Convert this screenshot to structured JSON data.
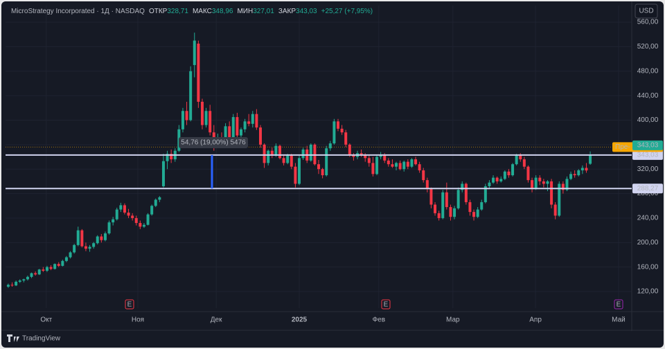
{
  "chart_data": {
    "type": "candlestick",
    "header": {
      "symbol": "MicroStrategy Incorporated · 1Д · NASDAQ",
      "fields": [
        {
          "name": "ОТКР",
          "value": "328,71"
        },
        {
          "name": "МАКС",
          "value": "348,96"
        },
        {
          "name": "МИН",
          "value": "327,01"
        },
        {
          "name": "ЗАКР",
          "value": "343,03"
        }
      ],
      "change": "+25,27 (+7,95%)"
    },
    "currency": "USD",
    "branding": "TradingView",
    "up_color": "#22ab94",
    "down_color": "#f23645",
    "xlim": [
      -0.7,
      160.7
    ],
    "xticks": [
      {
        "value": 9.8,
        "label": "Окт"
      },
      {
        "value": 33.4,
        "label": "Ноя"
      },
      {
        "value": 53.6,
        "label": "Дек"
      },
      {
        "value": 75,
        "label": "2025"
      },
      {
        "value": 95.5,
        "label": "Фев"
      },
      {
        "value": 114.6,
        "label": "Мар"
      },
      {
        "value": 135.9,
        "label": "Апр"
      },
      {
        "value": 157.3,
        "label": "Май"
      }
    ],
    "ylim": [
      92.9,
      587.2
    ],
    "yticks": [
      {
        "value": 120,
        "label": "120,00"
      },
      {
        "value": 160,
        "label": "160,00"
      },
      {
        "value": 200,
        "label": "200,00"
      },
      {
        "value": 240,
        "label": "240,00"
      },
      {
        "value": 280,
        "label": "280,00"
      },
      {
        "value": 320,
        "label": "320,00"
      },
      {
        "value": 360,
        "label": "360,00"
      },
      {
        "value": 400,
        "label": "400,00"
      },
      {
        "value": 440,
        "label": "440,00"
      },
      {
        "value": 480,
        "label": "480,00"
      },
      {
        "value": 520,
        "label": "520,00"
      },
      {
        "value": 560,
        "label": "560,00"
      }
    ],
    "grid": true,
    "hlines": [
      {
        "value": 343.03,
        "label": "343,03"
      },
      {
        "value": 288.27,
        "label": "288,27"
      }
    ],
    "last_price": {
      "value": 343.03,
      "label": "343,03"
    },
    "premarket": {
      "name": "Пре-",
      "value": 356.09,
      "label": "356,09"
    },
    "measure": {
      "text": "54,76 (19,00%) 5476",
      "from": 288.27,
      "to": 343.03
    },
    "events": [
      {
        "label": "E",
        "color": "#f23645"
      },
      {
        "label": "E",
        "color": "#f23645"
      },
      {
        "label": "E",
        "color": "#9c27b0"
      }
    ],
    "candles": [
      [
        128,
        133,
        126,
        131
      ],
      [
        131,
        135,
        128,
        130
      ],
      [
        130,
        138,
        129,
        136
      ],
      [
        136,
        140,
        134,
        138
      ],
      [
        138,
        141,
        135,
        140
      ],
      [
        140,
        146,
        138,
        144
      ],
      [
        144,
        151,
        142,
        150
      ],
      [
        150,
        153,
        146,
        148
      ],
      [
        148,
        157,
        147,
        156
      ],
      [
        156,
        160,
        152,
        154
      ],
      [
        154,
        162,
        152,
        160
      ],
      [
        160,
        163,
        155,
        157
      ],
      [
        157,
        166,
        156,
        165
      ],
      [
        165,
        168,
        160,
        162
      ],
      [
        162,
        172,
        161,
        170
      ],
      [
        170,
        178,
        168,
        176
      ],
      [
        176,
        186,
        174,
        184
      ],
      [
        184,
        198,
        182,
        196
      ],
      [
        196,
        226,
        194,
        220
      ],
      [
        220,
        222,
        192,
        194
      ],
      [
        194,
        200,
        186,
        190
      ],
      [
        190,
        196,
        185,
        193
      ],
      [
        193,
        201,
        190,
        199
      ],
      [
        199,
        212,
        197,
        210
      ],
      [
        210,
        214,
        200,
        204
      ],
      [
        204,
        218,
        202,
        215
      ],
      [
        215,
        236,
        213,
        233
      ],
      [
        233,
        242,
        228,
        238
      ],
      [
        238,
        257,
        236,
        254
      ],
      [
        254,
        265,
        250,
        261
      ],
      [
        261,
        264,
        246,
        249
      ],
      [
        249,
        255,
        240,
        244
      ],
      [
        244,
        248,
        236,
        240
      ],
      [
        240,
        244,
        228,
        232
      ],
      [
        232,
        236,
        222,
        226
      ],
      [
        226,
        232,
        224,
        229
      ],
      [
        229,
        248,
        228,
        246
      ],
      [
        246,
        262,
        244,
        260
      ],
      [
        260,
        272,
        258,
        270
      ],
      [
        270,
        276,
        266,
        274
      ],
      [
        292,
        345,
        290,
        333
      ],
      [
        333,
        350,
        320,
        345
      ],
      [
        345,
        352,
        330,
        336
      ],
      [
        336,
        354,
        332,
        350
      ],
      [
        350,
        392,
        348,
        385
      ],
      [
        385,
        420,
        380,
        415
      ],
      [
        415,
        430,
        392,
        400
      ],
      [
        400,
        488,
        398,
        480
      ],
      [
        490,
        543,
        470,
        530
      ],
      [
        525,
        530,
        420,
        430
      ],
      [
        430,
        435,
        385,
        392
      ],
      [
        392,
        420,
        388,
        415
      ],
      [
        415,
        425,
        375,
        380
      ],
      [
        380,
        392,
        350,
        362
      ],
      [
        362,
        378,
        358,
        372
      ],
      [
        372,
        380,
        360,
        366
      ],
      [
        366,
        395,
        362,
        390
      ],
      [
        390,
        398,
        355,
        360
      ],
      [
        360,
        410,
        358,
        405
      ],
      [
        405,
        412,
        370,
        375
      ],
      [
        375,
        388,
        365,
        385
      ],
      [
        385,
        402,
        380,
        398
      ],
      [
        398,
        410,
        390,
        394
      ],
      [
        394,
        415,
        388,
        410
      ],
      [
        410,
        418,
        384,
        388
      ],
      [
        388,
        392,
        355,
        360
      ],
      [
        360,
        362,
        322,
        330
      ],
      [
        330,
        352,
        326,
        350
      ],
      [
        350,
        355,
        338,
        342
      ],
      [
        342,
        362,
        340,
        358
      ],
      [
        358,
        360,
        336,
        338
      ],
      [
        338,
        342,
        326,
        330
      ],
      [
        330,
        345,
        328,
        342
      ],
      [
        342,
        345,
        320,
        324
      ],
      [
        324,
        330,
        290,
        296
      ],
      [
        296,
        342,
        294,
        338
      ],
      [
        338,
        355,
        335,
        352
      ],
      [
        352,
        358,
        330,
        334
      ],
      [
        334,
        362,
        332,
        360
      ],
      [
        360,
        362,
        326,
        328
      ],
      [
        328,
        335,
        312,
        320
      ],
      [
        320,
        322,
        305,
        310
      ],
      [
        310,
        358,
        308,
        354
      ],
      [
        354,
        366,
        350,
        362
      ],
      [
        362,
        402,
        360,
        398
      ],
      [
        398,
        402,
        382,
        386
      ],
      [
        386,
        392,
        376,
        380
      ],
      [
        380,
        384,
        356,
        360
      ],
      [
        360,
        362,
        340,
        344
      ],
      [
        344,
        346,
        334,
        340
      ],
      [
        340,
        350,
        336,
        346
      ],
      [
        346,
        352,
        340,
        344
      ],
      [
        344,
        346,
        332,
        338
      ],
      [
        338,
        342,
        324,
        330
      ],
      [
        330,
        340,
        308,
        312
      ],
      [
        312,
        344,
        310,
        340
      ],
      [
        340,
        348,
        336,
        344
      ],
      [
        344,
        346,
        330,
        334
      ],
      [
        334,
        338,
        324,
        328
      ],
      [
        328,
        336,
        322,
        324
      ],
      [
        324,
        332,
        318,
        330
      ],
      [
        330,
        334,
        318,
        320
      ],
      [
        320,
        334,
        316,
        332
      ],
      [
        332,
        336,
        320,
        324
      ],
      [
        324,
        338,
        322,
        336
      ],
      [
        336,
        340,
        326,
        328
      ],
      [
        328,
        332,
        314,
        318
      ],
      [
        318,
        322,
        298,
        302
      ],
      [
        302,
        306,
        282,
        288
      ],
      [
        288,
        290,
        256,
        262
      ],
      [
        262,
        266,
        244,
        248
      ],
      [
        248,
        252,
        236,
        240
      ],
      [
        240,
        286,
        238,
        282
      ],
      [
        282,
        298,
        254,
        258
      ],
      [
        258,
        262,
        236,
        242
      ],
      [
        242,
        260,
        238,
        256
      ],
      [
        256,
        290,
        254,
        286
      ],
      [
        286,
        300,
        282,
        296
      ],
      [
        296,
        298,
        262,
        266
      ],
      [
        266,
        270,
        244,
        250
      ],
      [
        250,
        254,
        236,
        242
      ],
      [
        242,
        258,
        240,
        254
      ],
      [
        254,
        270,
        252,
        266
      ],
      [
        266,
        296,
        264,
        292
      ],
      [
        292,
        302,
        288,
        298
      ],
      [
        298,
        310,
        296,
        306
      ],
      [
        306,
        308,
        296,
        300
      ],
      [
        300,
        308,
        298,
        304
      ],
      [
        304,
        318,
        302,
        316
      ],
      [
        316,
        320,
        306,
        310
      ],
      [
        310,
        330,
        308,
        328
      ],
      [
        328,
        345,
        326,
        342
      ],
      [
        342,
        346,
        332,
        336
      ],
      [
        336,
        340,
        320,
        324
      ],
      [
        324,
        326,
        298,
        302
      ],
      [
        302,
        306,
        282,
        288
      ],
      [
        288,
        310,
        286,
        306
      ],
      [
        306,
        310,
        294,
        300
      ],
      [
        300,
        304,
        290,
        296
      ],
      [
        296,
        302,
        284,
        300
      ],
      [
        300,
        304,
        256,
        262
      ],
      [
        262,
        266,
        238,
        244
      ],
      [
        244,
        300,
        242,
        296
      ],
      [
        296,
        300,
        280,
        286
      ],
      [
        286,
        308,
        284,
        304
      ],
      [
        304,
        316,
        302,
        312
      ],
      [
        312,
        318,
        306,
        310
      ],
      [
        310,
        320,
        308,
        318
      ],
      [
        318,
        326,
        312,
        322
      ],
      [
        322,
        330,
        314,
        317.76
      ],
      [
        328.71,
        348.96,
        327.01,
        343.03
      ]
    ]
  }
}
